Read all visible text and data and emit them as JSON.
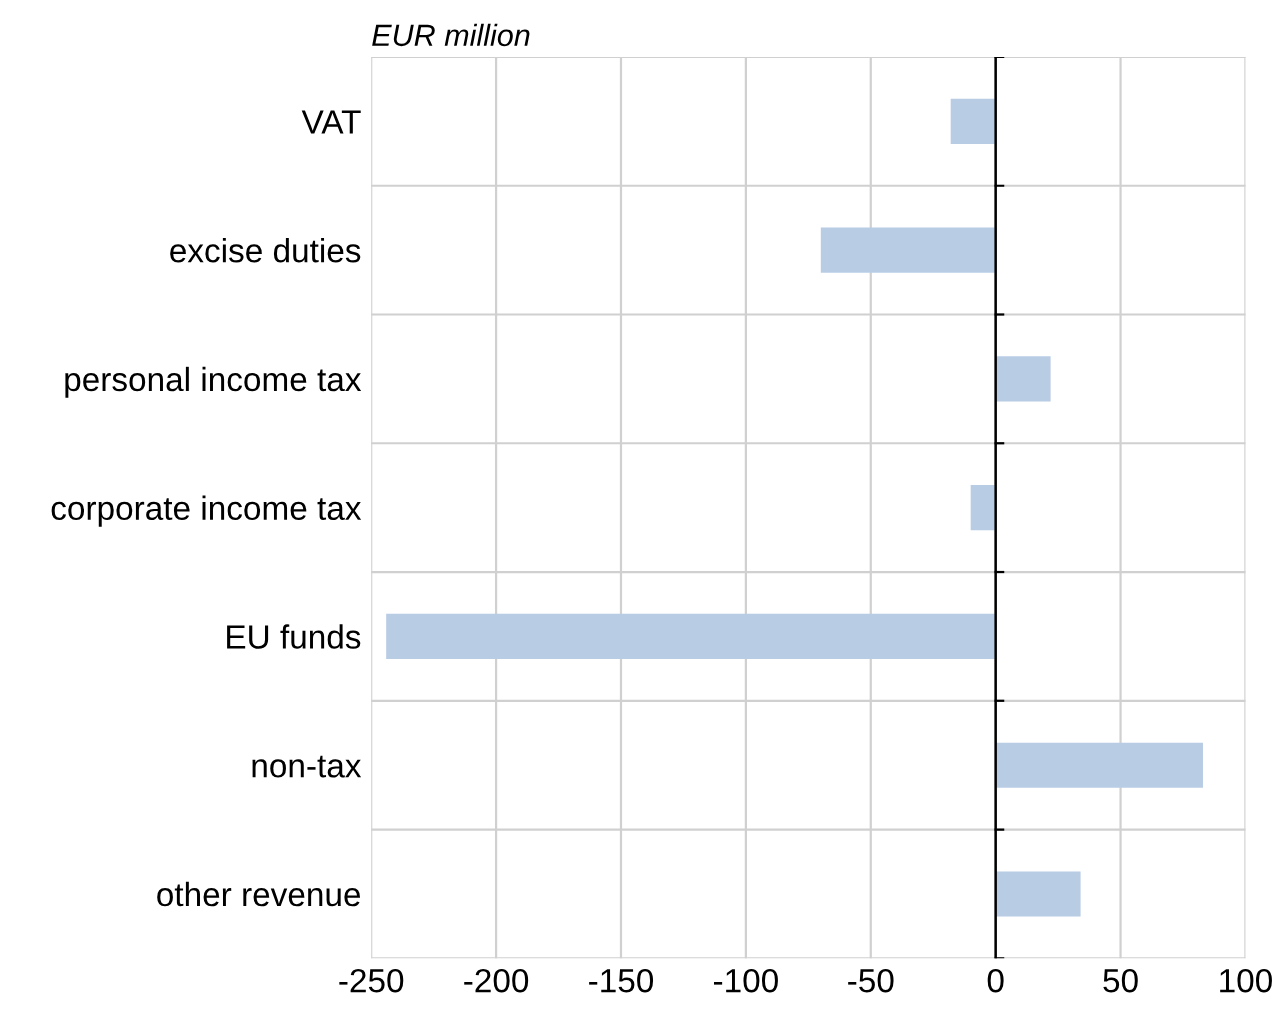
{
  "chart_data": {
    "type": "bar",
    "orientation": "horizontal",
    "title": "EUR million",
    "categories": [
      "VAT",
      "excise duties",
      "personal income tax",
      "corporate income tax",
      "EU funds",
      "non-tax",
      "other revenue"
    ],
    "values": [
      -18,
      -70,
      22,
      -10,
      -244,
      83,
      34
    ],
    "color": "#b8cce4",
    "xlim": [
      -250,
      100
    ],
    "xticks": [
      -250,
      -200,
      -150,
      -100,
      -50,
      0,
      50,
      100
    ],
    "grid": true
  }
}
